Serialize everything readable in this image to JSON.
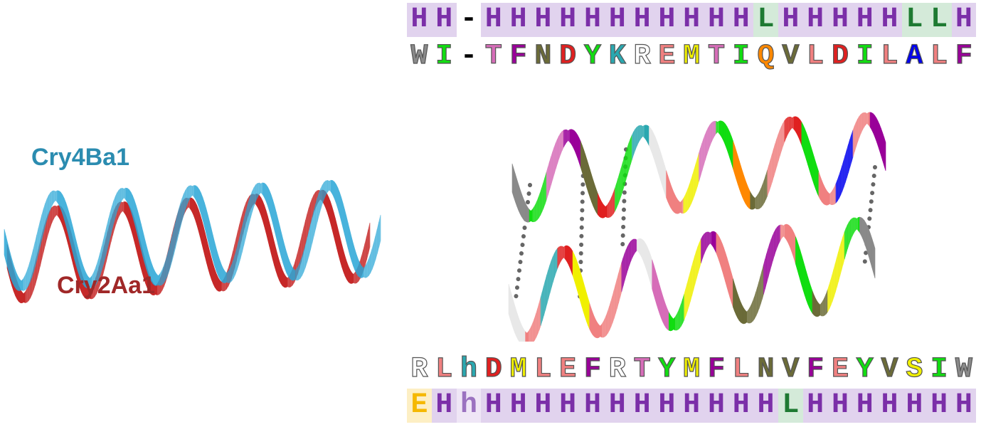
{
  "left_panel": {
    "label_top": "Cry4Ba1",
    "label_bottom": "Cry2Aa1",
    "label_top_color": "#2b8cb0",
    "label_bottom_color": "#a02828",
    "helix_colors": [
      "#29a6d6",
      "#c62828"
    ]
  },
  "top_structure": [
    "H",
    "H",
    "-",
    "H",
    "H",
    "H",
    "H",
    "H",
    "H",
    "H",
    "H",
    "H",
    "H",
    "H",
    "L",
    "H",
    "H",
    "H",
    "H",
    "H",
    "L",
    "L",
    "H"
  ],
  "top_sequence": [
    "W",
    "I",
    "-",
    "T",
    "F",
    "N",
    "D",
    "Y",
    "K",
    "R",
    "E",
    "M",
    "T",
    "I",
    "Q",
    "V",
    "L",
    "D",
    "I",
    "L",
    "A",
    "L",
    "F"
  ],
  "bottom_sequence": [
    "R",
    "L",
    "h",
    "D",
    "M",
    "L",
    "E",
    "F",
    "R",
    "T",
    "Y",
    "M",
    "F",
    "L",
    "N",
    "V",
    "F",
    "E",
    "Y",
    "V",
    "S",
    "I",
    "W"
  ],
  "bottom_structure": [
    "E",
    "H",
    "h",
    "H",
    "H",
    "H",
    "H",
    "H",
    "H",
    "H",
    "H",
    "H",
    "H",
    "H",
    "H",
    "L",
    "H",
    "H",
    "H",
    "H",
    "H",
    "H",
    "H"
  ],
  "colors": {
    "structure_H_text": "#7b2fa8",
    "structure_H_bg": "#e1d3ee",
    "structure_L_text": "#1e7a32",
    "structure_L_bg": "#d4ead9",
    "structure_E_text": "#f5b800",
    "structure_E_bg": "#fdefc4",
    "structure_h_text": "#9b72c0",
    "structure_h_bg": "#efe6f6",
    "residue": {
      "W": "#8a8a8a",
      "I": "#11dd11",
      "T": "#d66db8",
      "F": "#990099",
      "N": "#6b6b38",
      "D": "#e02020",
      "Y": "#11dd11",
      "K": "#2aa8b0",
      "R": "#ffffff",
      "E": "#f08080",
      "M": "#f0f000",
      "Q": "#ff8800",
      "V": "#6b6b38",
      "L": "#f08080",
      "A": "#0000ee",
      "S": "#f0f000",
      "h": "#2aa8b0"
    }
  }
}
